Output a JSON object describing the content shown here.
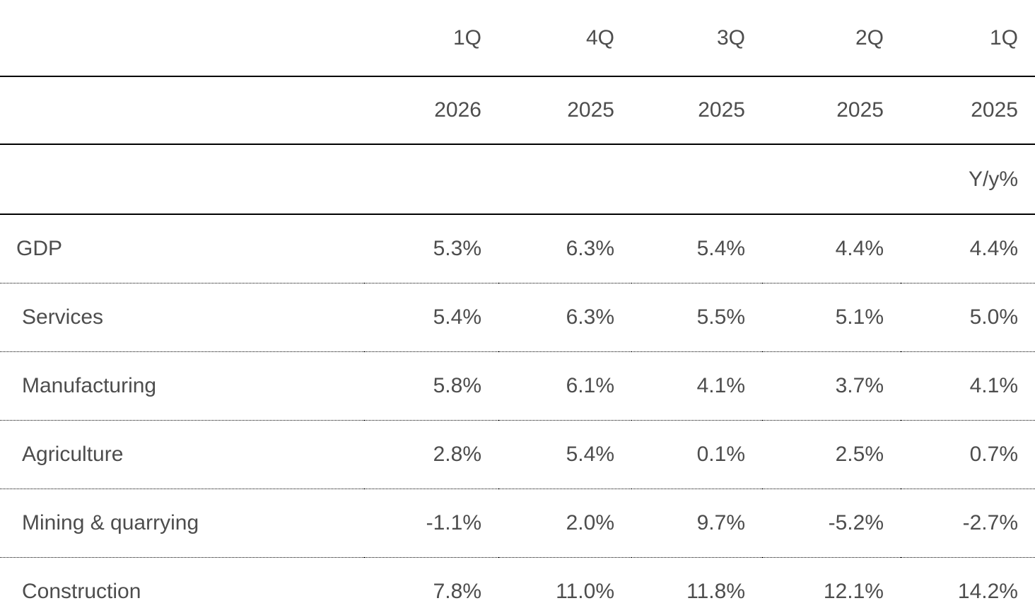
{
  "colors": {
    "text": "#4d4d4d",
    "border": "#000000",
    "background": "#ffffff"
  },
  "chart_data": {
    "type": "table",
    "title": "",
    "unit_note": "Y/y%",
    "column_headers_quarter": [
      "1Q",
      "4Q",
      "3Q",
      "2Q",
      "1Q"
    ],
    "column_headers_year": [
      "2026",
      "2025",
      "2025",
      "2025",
      "2025"
    ],
    "row_labels": [
      "GDP",
      "Services",
      "Manufacturing",
      "Agriculture",
      "Mining & quarrying",
      "Construction"
    ],
    "series": [
      {
        "name": "GDP",
        "values": [
          "5.3%",
          "6.3%",
          "5.4%",
          "4.4%",
          "4.4%"
        ]
      },
      {
        "name": "Services",
        "values": [
          "5.4%",
          "6.3%",
          "5.5%",
          "5.1%",
          "5.0%"
        ]
      },
      {
        "name": "Manufacturing",
        "values": [
          "5.8%",
          "6.1%",
          "4.1%",
          "3.7%",
          "4.1%"
        ]
      },
      {
        "name": "Agriculture",
        "values": [
          "2.8%",
          "5.4%",
          "0.1%",
          "2.5%",
          "0.7%"
        ]
      },
      {
        "name": "Mining & quarrying",
        "values": [
          "-1.1%",
          "2.0%",
          "9.7%",
          "-5.2%",
          "-2.7%"
        ]
      },
      {
        "name": "Construction",
        "values": [
          "7.8%",
          "11.0%",
          "11.8%",
          "12.1%",
          "14.2%"
        ]
      }
    ]
  },
  "table": {
    "header_quarter": {
      "label": "",
      "cells": [
        "1Q",
        "4Q",
        "3Q",
        "2Q",
        "1Q"
      ]
    },
    "header_year": {
      "label": "",
      "cells": [
        "2026",
        "2025",
        "2025",
        "2025",
        "2025"
      ]
    },
    "header_unit": {
      "label": "",
      "cells": [
        "",
        "",
        "",
        "",
        "Y/y%"
      ]
    },
    "rows": [
      {
        "label": "GDP",
        "values": [
          "5.3%",
          "6.3%",
          "5.4%",
          "4.4%",
          "4.4%"
        ]
      },
      {
        "label": "Services",
        "values": [
          "5.4%",
          "6.3%",
          "5.5%",
          "5.1%",
          "5.0%"
        ]
      },
      {
        "label": "Manufacturing",
        "values": [
          "5.8%",
          "6.1%",
          "4.1%",
          "3.7%",
          "4.1%"
        ]
      },
      {
        "label": "Agriculture",
        "values": [
          "2.8%",
          "5.4%",
          "0.1%",
          "2.5%",
          "0.7%"
        ]
      },
      {
        "label": "Mining & quarrying",
        "values": [
          "-1.1%",
          "2.0%",
          "9.7%",
          "-5.2%",
          "-2.7%"
        ]
      },
      {
        "label": "Construction",
        "values": [
          "7.8%",
          "11.0%",
          "11.8%",
          "12.1%",
          "14.2%"
        ]
      }
    ]
  }
}
